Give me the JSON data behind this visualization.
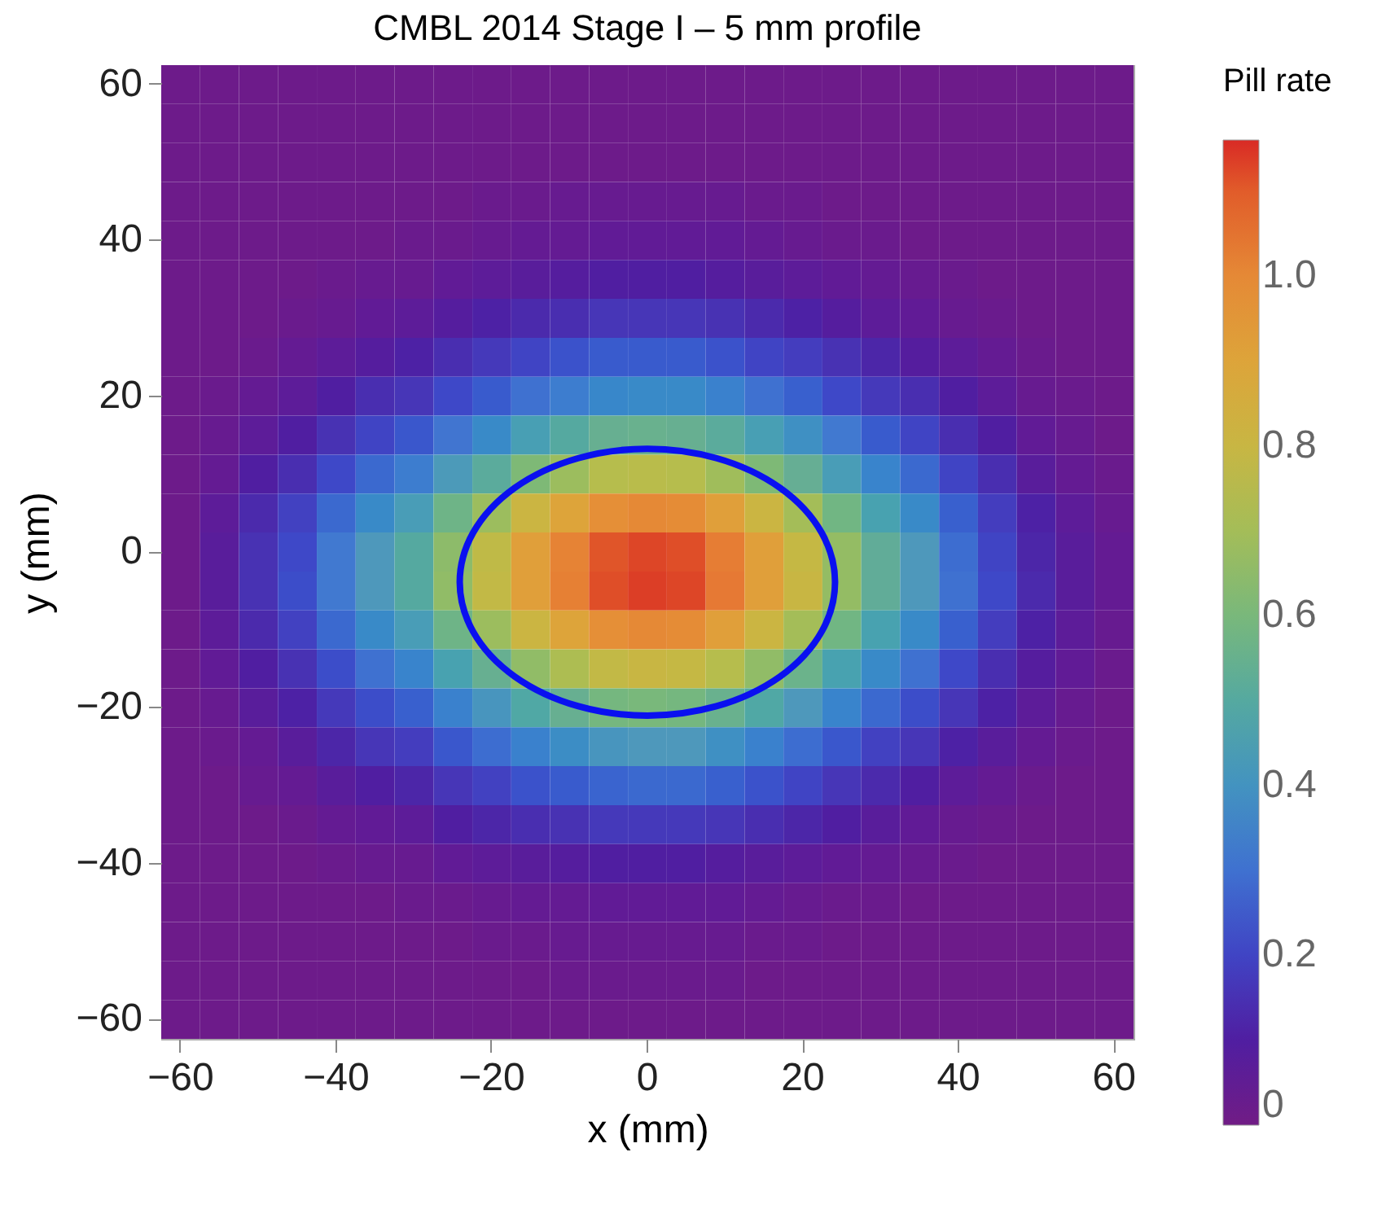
{
  "chart_data": {
    "type": "heatmap",
    "title": "CMBL 2014 Stage I – 5 mm profile",
    "xlabel": "x (mm)",
    "ylabel": "y (mm)",
    "clabel": "Pill rate",
    "categories": [
      "−60",
      null,
      null,
      null,
      "−40",
      null,
      null,
      null,
      "−20",
      null,
      null,
      null,
      "0",
      null,
      null,
      null,
      "20",
      null,
      null,
      null,
      "40",
      null,
      null,
      null,
      "60"
    ],
    "y_categories": [
      "60",
      null,
      null,
      null,
      "40",
      null,
      null,
      null,
      "20",
      null,
      null,
      null,
      "0",
      null,
      null,
      null,
      "−20",
      null,
      null,
      null,
      "−40",
      null,
      null,
      null,
      "−60"
    ],
    "clim": [
      0,
      1.16
    ],
    "cticks": [
      0,
      0.2,
      0.4,
      0.6,
      0.8,
      {
        "value": 1,
        "label": "1.0"
      }
    ],
    "cells": [
      [
        0.02,
        0.02,
        0.02,
        0.02,
        0.02,
        0.02,
        0.02,
        0.02,
        0.02,
        0.02,
        0.02,
        0.02,
        0.02,
        0.02,
        0.02,
        0.02,
        0.02,
        0.02,
        0.02,
        0.02,
        0.02,
        0.02,
        0.02,
        0.02,
        0.02
      ],
      [
        0.02,
        0.02,
        0.02,
        0.02,
        0.02,
        0.02,
        0.02,
        0.02,
        0.02,
        0.02,
        0.02,
        0.02,
        0.02,
        0.02,
        0.02,
        0.02,
        0.02,
        0.02,
        0.02,
        0.02,
        0.02,
        0.02,
        0.02,
        0.02,
        0.02
      ],
      [
        0.02,
        0.02,
        0.02,
        0.02,
        0.02,
        0.02,
        0.02,
        0.02,
        0.02,
        0.02,
        0.02,
        0.02,
        0.02,
        0.02,
        0.02,
        0.02,
        0.02,
        0.02,
        0.02,
        0.02,
        0.02,
        0.02,
        0.02,
        0.02,
        0.02
      ],
      [
        0.02,
        0.02,
        0.02,
        0.02,
        0.02,
        0.02,
        0.02,
        0.02,
        0.03,
        0.03,
        0.04,
        0.04,
        0.04,
        0.04,
        0.04,
        0.03,
        0.03,
        0.02,
        0.02,
        0.02,
        0.02,
        0.02,
        0.02,
        0.02,
        0.02
      ],
      [
        0.02,
        0.02,
        0.02,
        0.02,
        0.02,
        0.02,
        0.03,
        0.03,
        0.04,
        0.05,
        0.05,
        0.06,
        0.06,
        0.06,
        0.06,
        0.05,
        0.04,
        0.03,
        0.03,
        0.02,
        0.02,
        0.02,
        0.02,
        0.02,
        0.02
      ],
      [
        0.02,
        0.02,
        0.02,
        0.02,
        0.03,
        0.04,
        0.04,
        0.06,
        0.07,
        0.08,
        0.09,
        0.1,
        0.1,
        0.1,
        0.09,
        0.08,
        0.07,
        0.06,
        0.05,
        0.04,
        0.03,
        0.02,
        0.02,
        0.02,
        0.02
      ],
      [
        0.02,
        0.02,
        0.02,
        0.03,
        0.04,
        0.06,
        0.07,
        0.09,
        0.11,
        0.13,
        0.14,
        0.16,
        0.16,
        0.16,
        0.15,
        0.13,
        0.11,
        0.09,
        0.07,
        0.06,
        0.04,
        0.03,
        0.02,
        0.02,
        0.02
      ],
      [
        0.02,
        0.02,
        0.03,
        0.05,
        0.07,
        0.09,
        0.11,
        0.14,
        0.17,
        0.2,
        0.23,
        0.25,
        0.25,
        0.25,
        0.23,
        0.2,
        0.18,
        0.15,
        0.12,
        0.09,
        0.07,
        0.05,
        0.03,
        0.02,
        0.02
      ],
      [
        0.02,
        0.03,
        0.05,
        0.07,
        0.1,
        0.14,
        0.16,
        0.21,
        0.25,
        0.3,
        0.33,
        0.36,
        0.37,
        0.37,
        0.34,
        0.3,
        0.26,
        0.21,
        0.17,
        0.14,
        0.1,
        0.07,
        0.04,
        0.03,
        0.02
      ],
      [
        0.02,
        0.04,
        0.07,
        0.1,
        0.15,
        0.2,
        0.24,
        0.31,
        0.37,
        0.45,
        0.5,
        0.54,
        0.55,
        0.54,
        0.51,
        0.45,
        0.39,
        0.32,
        0.25,
        0.2,
        0.14,
        0.1,
        0.06,
        0.04,
        0.02
      ],
      [
        0.02,
        0.05,
        0.1,
        0.14,
        0.21,
        0.28,
        0.33,
        0.43,
        0.51,
        0.61,
        0.68,
        0.74,
        0.75,
        0.74,
        0.69,
        0.61,
        0.53,
        0.44,
        0.35,
        0.28,
        0.2,
        0.14,
        0.08,
        0.05,
        0.03
      ],
      [
        0.02,
        0.07,
        0.13,
        0.19,
        0.28,
        0.37,
        0.44,
        0.57,
        0.68,
        0.81,
        0.9,
        0.98,
        1.0,
        0.99,
        0.92,
        0.81,
        0.7,
        0.58,
        0.46,
        0.37,
        0.26,
        0.18,
        0.11,
        0.07,
        0.04
      ],
      [
        0.02,
        0.08,
        0.15,
        0.21,
        0.32,
        0.42,
        0.5,
        0.64,
        0.77,
        0.92,
        1.02,
        1.11,
        1.13,
        1.12,
        1.04,
        0.92,
        0.79,
        0.66,
        0.52,
        0.42,
        0.29,
        0.2,
        0.12,
        0.08,
        0.05
      ],
      [
        0.02,
        0.08,
        0.15,
        0.22,
        0.32,
        0.42,
        0.5,
        0.65,
        0.78,
        0.92,
        1.03,
        1.12,
        1.14,
        1.13,
        1.05,
        0.92,
        0.8,
        0.66,
        0.52,
        0.42,
        0.3,
        0.21,
        0.13,
        0.08,
        0.05
      ],
      [
        0.02,
        0.07,
        0.13,
        0.19,
        0.28,
        0.37,
        0.44,
        0.57,
        0.68,
        0.81,
        0.9,
        0.98,
        1.0,
        0.99,
        0.92,
        0.81,
        0.7,
        0.58,
        0.46,
        0.37,
        0.26,
        0.18,
        0.11,
        0.07,
        0.04
      ],
      [
        0.02,
        0.06,
        0.1,
        0.15,
        0.22,
        0.3,
        0.35,
        0.46,
        0.54,
        0.65,
        0.72,
        0.78,
        0.8,
        0.79,
        0.74,
        0.65,
        0.56,
        0.46,
        0.37,
        0.3,
        0.21,
        0.14,
        0.09,
        0.06,
        0.03
      ],
      [
        0.02,
        0.04,
        0.08,
        0.11,
        0.17,
        0.22,
        0.26,
        0.34,
        0.41,
        0.49,
        0.54,
        0.59,
        0.6,
        0.59,
        0.55,
        0.49,
        0.42,
        0.35,
        0.28,
        0.22,
        0.16,
        0.11,
        0.07,
        0.04,
        0.02
      ],
      [
        0.02,
        0.03,
        0.05,
        0.08,
        0.12,
        0.16,
        0.18,
        0.24,
        0.29,
        0.34,
        0.38,
        0.41,
        0.42,
        0.42,
        0.39,
        0.34,
        0.29,
        0.24,
        0.19,
        0.16,
        0.11,
        0.08,
        0.05,
        0.03,
        0.02
      ],
      [
        0.02,
        0.02,
        0.04,
        0.05,
        0.08,
        0.1,
        0.12,
        0.16,
        0.19,
        0.23,
        0.25,
        0.27,
        0.28,
        0.28,
        0.26,
        0.23,
        0.2,
        0.16,
        0.13,
        0.1,
        0.07,
        0.05,
        0.03,
        0.02,
        0.02
      ],
      [
        0.02,
        0.02,
        0.02,
        0.03,
        0.05,
        0.06,
        0.07,
        0.1,
        0.12,
        0.14,
        0.15,
        0.17,
        0.17,
        0.17,
        0.16,
        0.14,
        0.12,
        0.1,
        0.08,
        0.06,
        0.04,
        0.03,
        0.02,
        0.02,
        0.02
      ],
      [
        0.02,
        0.02,
        0.02,
        0.02,
        0.03,
        0.04,
        0.04,
        0.06,
        0.07,
        0.08,
        0.09,
        0.1,
        0.1,
        0.1,
        0.09,
        0.08,
        0.07,
        0.06,
        0.05,
        0.04,
        0.03,
        0.02,
        0.02,
        0.02,
        0.02
      ],
      [
        0.02,
        0.02,
        0.02,
        0.02,
        0.02,
        0.02,
        0.03,
        0.03,
        0.04,
        0.05,
        0.05,
        0.06,
        0.06,
        0.06,
        0.06,
        0.05,
        0.04,
        0.03,
        0.03,
        0.02,
        0.02,
        0.02,
        0.02,
        0.02,
        0.02
      ],
      [
        0.02,
        0.02,
        0.02,
        0.02,
        0.02,
        0.02,
        0.02,
        0.02,
        0.03,
        0.03,
        0.04,
        0.04,
        0.04,
        0.04,
        0.04,
        0.03,
        0.03,
        0.02,
        0.02,
        0.02,
        0.02,
        0.02,
        0.02,
        0.02,
        0.02
      ],
      [
        0.02,
        0.02,
        0.02,
        0.02,
        0.02,
        0.02,
        0.02,
        0.02,
        0.02,
        0.02,
        0.03,
        0.03,
        0.03,
        0.03,
        0.03,
        0.02,
        0.02,
        0.02,
        0.02,
        0.02,
        0.02,
        0.02,
        0.02,
        0.02,
        0.02
      ],
      [
        0.02,
        0.02,
        0.02,
        0.02,
        0.02,
        0.02,
        0.02,
        0.02,
        0.02,
        0.02,
        0.02,
        0.02,
        0.02,
        0.02,
        0.02,
        0.02,
        0.02,
        0.02,
        0.02,
        0.02,
        0.02,
        0.02,
        0.02,
        0.02,
        0.02
      ]
    ]
  }
}
